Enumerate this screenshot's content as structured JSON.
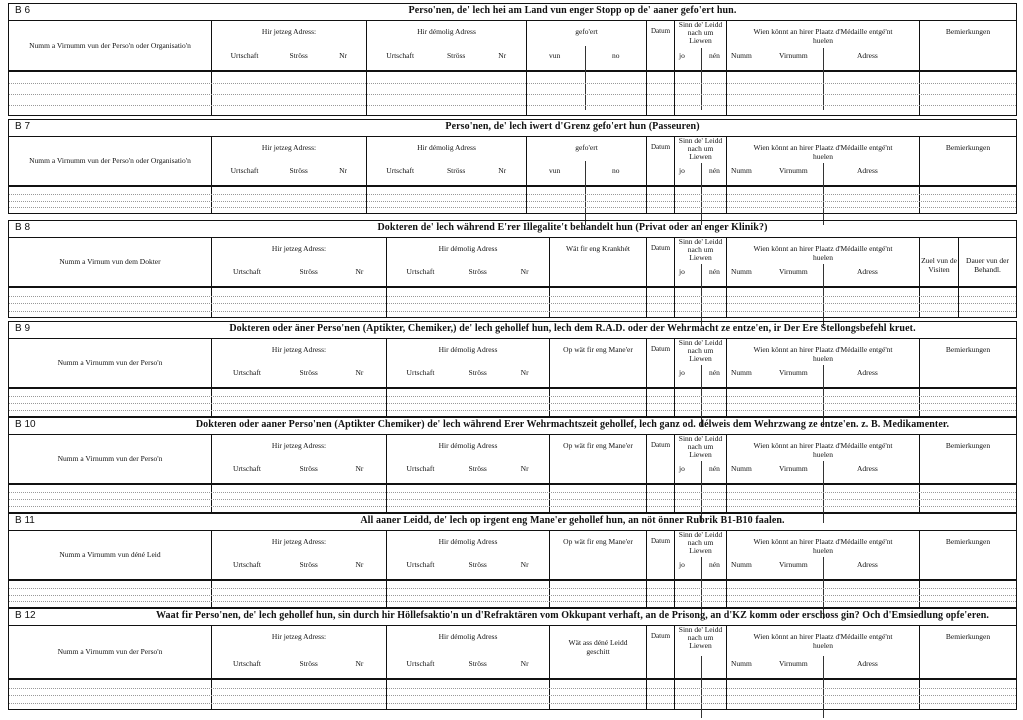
{
  "labels": {
    "jetzeg": "Hir jetzeg Adress:",
    "demolig": "Hir démolig Adress",
    "urtschaft": "Urtschaft",
    "stross": "Ströss",
    "nr": "Nr",
    "gefoert": "gefo'ert",
    "vun": "vun",
    "no": "no",
    "datum": "Datum",
    "sinn": "Sinn de' Leidd nach um Liewen",
    "jo": "jo",
    "nen": "nén",
    "wien": "Wien könnt an hirer Plaatz d'Médaille entgé'nt huelen",
    "numm": "Numm",
    "virnumm": "Virnumm",
    "adress": "Adress",
    "bemierkungen": "Bemierkungen",
    "zuel": "Zuel vun de Visiten",
    "dauer": "Dauer vun der Behandl."
  },
  "sections": [
    {
      "code": "B 6",
      "title": "Perso'nen, de' lech hei am Land vun enger Stopp  op de' aaner gefo'ert hun.",
      "name_col": "Numm a Virnumm vun der Perso'n oder Organisatio'n"
    },
    {
      "code": "B 7",
      "title": "Perso'nen, de' lech iwert d'Grenz gefo'ert hun  (Passeuren)",
      "name_col": "Numm a Virnumm vun der Perso'n oder Organisatio'n"
    },
    {
      "code": "B 8",
      "title": "Dokteren de' lech während E'rer Illegalite't behandelt hun (Privat oder an enger Klinik?)",
      "name_col": "Numm a Virnum vun dem Dokter",
      "mid_col": "Wät fir eng Krankhét"
    },
    {
      "code": "B 9",
      "title": "Dokteren oder äner Perso'nen (Aptikter, Chemiker,) de' lech gehollef hun, lech dem R.A.D. oder der Wehrmacht ze entze'en, ir Der Ere Stellongsbefehl kruet.",
      "name_col": "Numm a Virnumm vun der Perso'n",
      "mid_col": "Op wät fir eng Mane'er"
    },
    {
      "code": "B 10",
      "title": "Dokteren oder aaner Perso'nen (Aptikter Chemiker) de' lech während Erer Wehrmachtszeit gehollef, lech ganz od. délweis dem Wehrzwang ze entze'en. z. B. Medikamenter.",
      "name_col": "Numm a Virnumm vun der Perso'n",
      "mid_col": "Op wät fir eng Mane'er"
    },
    {
      "code": "B 11",
      "title": "All aaner Leidd, de' lech op irgent eng Mane'er  gehollef hun, an nöt önner Rubrik B1-B10 faalen.",
      "name_col": "Numm a Virnumm vun déné Leid",
      "mid_col": "Op wät fir eng Mane'er"
    },
    {
      "code": "B 12",
      "title": "Waat fir Perso'nen, de' lech gehollef hun, sin durch hir Höllefsaktio'n un d'Refraktären vom Okkupant verhaft, an de Prisong, an d'KZ komm oder  erschoss gin? Och d'Emsiedlung opfe'eren.",
      "name_col": "Numm a Virnumm vun der Perso'n",
      "mid_col": "Wät ass déné Leidd geschitt"
    }
  ]
}
